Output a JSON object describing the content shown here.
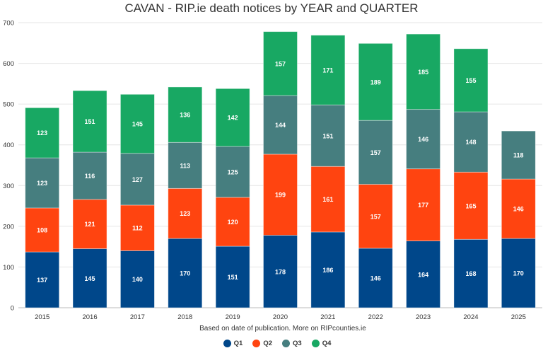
{
  "chart_data": {
    "type": "bar",
    "stacked": true,
    "title": "CAVAN - RIP.ie death notices by YEAR and QUARTER",
    "subtitle": "Based on date of publication. More on RIPcounties.ie",
    "categories": [
      "2015",
      "2016",
      "2017",
      "2018",
      "2019",
      "2020",
      "2021",
      "2022",
      "2023",
      "2024",
      "2025"
    ],
    "series": [
      {
        "name": "Q1",
        "color": "#00478a",
        "values": [
          137,
          145,
          140,
          170,
          151,
          178,
          186,
          146,
          164,
          168,
          170
        ]
      },
      {
        "name": "Q2",
        "color": "#ff4410",
        "values": [
          108,
          121,
          112,
          123,
          120,
          199,
          161,
          157,
          177,
          165,
          146
        ]
      },
      {
        "name": "Q3",
        "color": "#467e7f",
        "values": [
          123,
          116,
          127,
          113,
          125,
          144,
          151,
          157,
          146,
          148,
          118
        ]
      },
      {
        "name": "Q4",
        "color": "#18a863",
        "values": [
          123,
          151,
          145,
          136,
          142,
          157,
          171,
          189,
          185,
          155,
          null
        ]
      }
    ],
    "ylim": [
      0,
      700
    ],
    "yticks": [
      "0",
      "100",
      "200",
      "300",
      "400",
      "500",
      "600",
      "700"
    ],
    "grid": true,
    "legend": "bottom",
    "data_labels": true
  }
}
